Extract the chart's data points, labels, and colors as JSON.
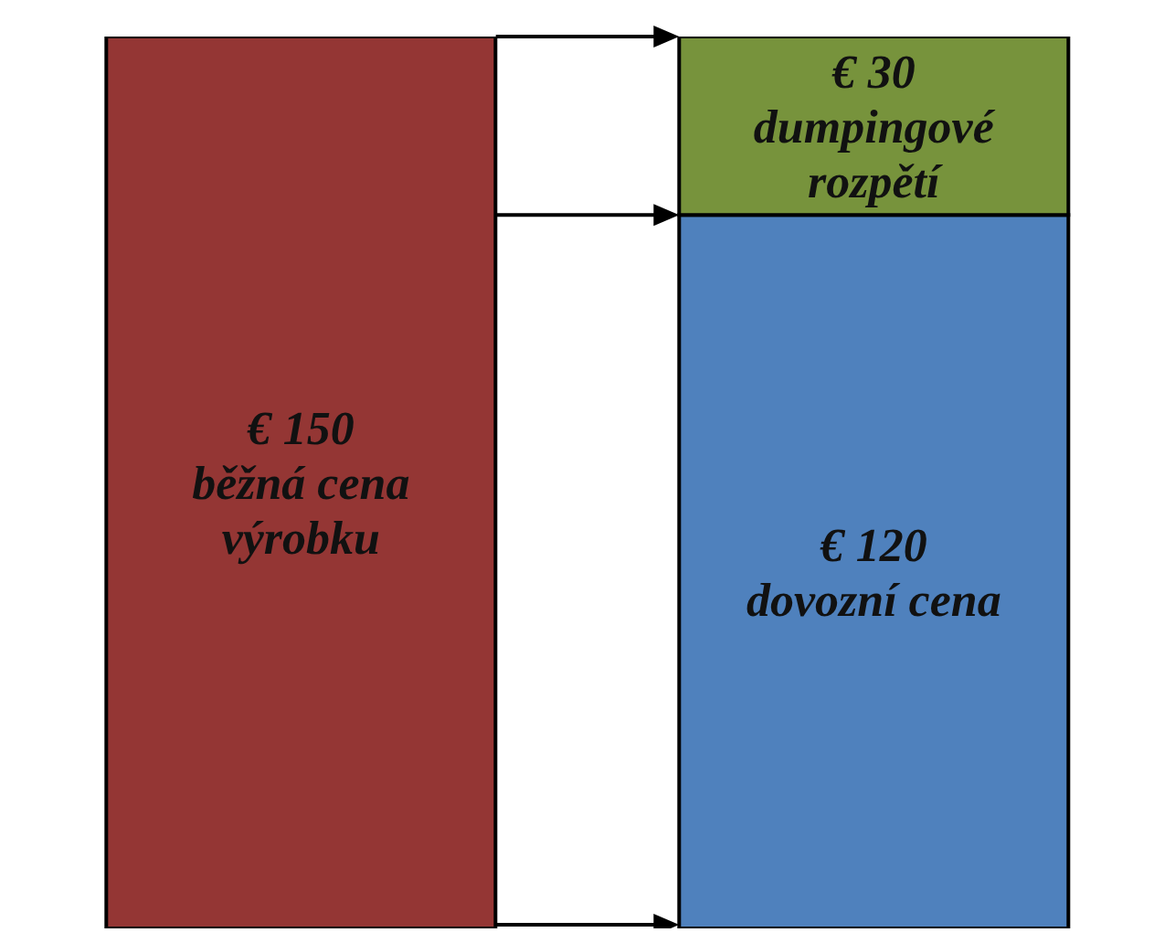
{
  "chart_data": {
    "type": "bar",
    "stacked": true,
    "categories": [
      null,
      null
    ],
    "series": [
      {
        "values": [
          150,
          120
        ],
        "colors": [
          "#943634",
          "#4f81bd"
        ],
        "value_labels": [
          "€ 150\nběžná cena\nvýrobku",
          "€ 120\ndovozní cena"
        ]
      },
      {
        "values": [
          null,
          30
        ],
        "color": "#77933c",
        "value_labels": [
          null,
          "€ 30\ndumpingové\nrozpětí"
        ]
      }
    ]
  }
}
